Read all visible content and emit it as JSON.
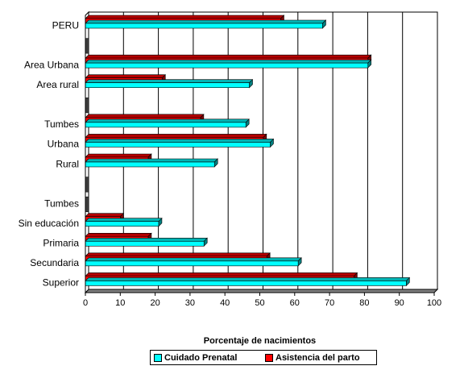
{
  "chart_data": {
    "type": "bar",
    "orientation": "horizontal",
    "categories": [
      "PERU",
      "",
      "Area Urbana",
      "Area rural",
      "",
      "Tumbes",
      "Urbana",
      "Rural",
      "",
      "Tumbes",
      "Sin educación",
      "Primaria",
      "Secundaria",
      "Superior"
    ],
    "series": [
      {
        "name": "Asistencia del parto",
        "color": "#ff0000",
        "values": [
          56,
          null,
          81,
          22,
          null,
          33,
          51,
          18,
          null,
          null,
          10,
          18,
          52,
          77
        ]
      },
      {
        "name": "Cuidado Prenatal",
        "color": "#00ffff",
        "values": [
          68,
          null,
          81,
          47,
          null,
          46,
          53,
          37,
          null,
          null,
          21,
          34,
          61,
          92
        ]
      }
    ],
    "xlabel": "Porcentaje de nacimientos",
    "xlim": [
      0,
      100
    ],
    "xticks": [
      "0",
      "10",
      "20",
      "30",
      "40",
      "50",
      "60",
      "70",
      "80",
      "90",
      "100"
    ],
    "grid": "vertical",
    "legend_position": "bottom",
    "legend_order": [
      "Cuidado Prenatal",
      "Asistencia del parto"
    ]
  }
}
